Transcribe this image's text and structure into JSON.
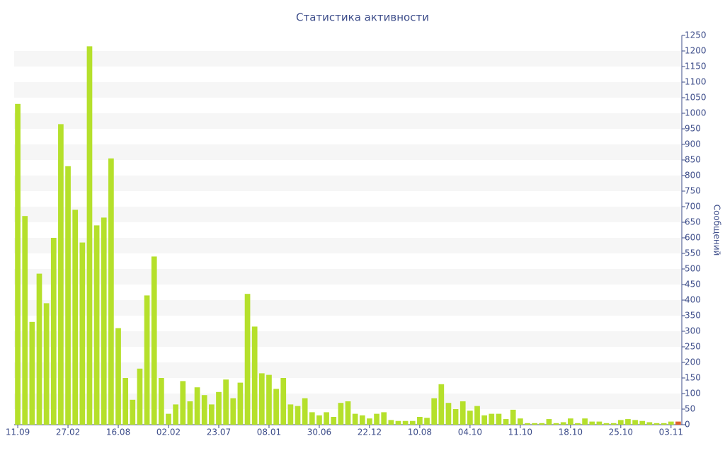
{
  "chart_data": {
    "type": "bar",
    "title": "Статистика активности",
    "y_label": "Сообщений",
    "categories": [
      "11.09",
      null,
      null,
      null,
      null,
      null,
      null,
      "27.02",
      null,
      null,
      null,
      null,
      null,
      null,
      "16.08",
      null,
      null,
      null,
      null,
      null,
      null,
      "02.02",
      null,
      null,
      null,
      null,
      null,
      null,
      "23.07",
      null,
      null,
      null,
      null,
      null,
      null,
      "08.01",
      null,
      null,
      null,
      null,
      null,
      null,
      "30.06",
      null,
      null,
      null,
      null,
      null,
      null,
      "22.12",
      null,
      null,
      null,
      null,
      null,
      null,
      "10.08",
      null,
      null,
      null,
      null,
      null,
      null,
      "04.10",
      null,
      null,
      null,
      null,
      null,
      null,
      "11.10",
      null,
      null,
      null,
      null,
      null,
      null,
      "18.10",
      null,
      null,
      null,
      null,
      null,
      null,
      "25.10",
      null,
      null,
      null,
      null,
      null,
      null,
      "03.11",
      null
    ],
    "values": [
      1030,
      670,
      330,
      485,
      390,
      600,
      965,
      830,
      690,
      585,
      1215,
      640,
      665,
      855,
      310,
      150,
      80,
      180,
      415,
      540,
      150,
      35,
      65,
      140,
      75,
      120,
      95,
      65,
      105,
      145,
      85,
      135,
      420,
      315,
      165,
      160,
      115,
      150,
      65,
      60,
      85,
      40,
      30,
      40,
      25,
      70,
      75,
      35,
      30,
      20,
      35,
      40,
      15,
      12,
      12,
      12,
      25,
      22,
      85,
      130,
      70,
      50,
      75,
      45,
      60,
      30,
      35,
      35,
      18,
      48,
      20,
      5,
      5,
      5,
      18,
      5,
      8,
      20,
      5,
      20,
      10,
      10,
      5,
      5,
      15,
      18,
      15,
      12,
      8,
      5,
      5,
      10,
      10
    ],
    "colors": [
      "#b5e02b",
      "#b5e02b",
      "#b5e02b",
      "#b5e02b",
      "#b5e02b",
      "#b5e02b",
      "#b5e02b",
      "#b5e02b",
      "#b5e02b",
      "#b5e02b",
      "#b5e02b",
      "#b5e02b",
      "#b5e02b",
      "#b5e02b",
      "#b5e02b",
      "#b5e02b",
      "#b5e02b",
      "#b5e02b",
      "#b5e02b",
      "#b5e02b",
      "#b5e02b",
      "#b5e02b",
      "#b5e02b",
      "#b5e02b",
      "#b5e02b",
      "#b5e02b",
      "#b5e02b",
      "#b5e02b",
      "#b5e02b",
      "#b5e02b",
      "#b5e02b",
      "#b5e02b",
      "#b5e02b",
      "#b5e02b",
      "#b5e02b",
      "#b5e02b",
      "#b5e02b",
      "#b5e02b",
      "#b5e02b",
      "#b5e02b",
      "#b5e02b",
      "#b5e02b",
      "#b5e02b",
      "#b5e02b",
      "#b5e02b",
      "#b5e02b",
      "#b5e02b",
      "#b5e02b",
      "#b5e02b",
      "#b5e02b",
      "#b5e02b",
      "#b5e02b",
      "#b5e02b",
      "#b5e02b",
      "#b5e02b",
      "#b5e02b",
      "#b5e02b",
      "#b5e02b",
      "#b5e02b",
      "#b5e02b",
      "#b5e02b",
      "#b5e02b",
      "#b5e02b",
      "#b5e02b",
      "#b5e02b",
      "#b5e02b",
      "#b5e02b",
      "#b5e02b",
      "#b5e02b",
      "#b5e02b",
      "#b5e02b",
      "#b5e02b",
      "#b5e02b",
      "#b5e02b",
      "#b5e02b",
      "#b5e02b",
      "#b5e02b",
      "#b5e02b",
      "#b5e02b",
      "#b5e02b",
      "#b5e02b",
      "#b5e02b",
      "#b5e02b",
      "#b5e02b",
      "#b5e02b",
      "#b5e02b",
      "#b5e02b",
      "#b5e02b",
      "#b5e02b",
      "#b5e02b",
      "#b5e02b",
      "#b5e02b",
      "#e0602b"
    ],
    "ylim": [
      0,
      1250
    ],
    "yticks": [
      0,
      50,
      100,
      150,
      200,
      250,
      300,
      350,
      400,
      450,
      500,
      550,
      600,
      650,
      700,
      750,
      800,
      850,
      900,
      950,
      1000,
      1050,
      1100,
      1150,
      1200,
      1250
    ],
    "grid": true,
    "y_axis_side": "right"
  }
}
